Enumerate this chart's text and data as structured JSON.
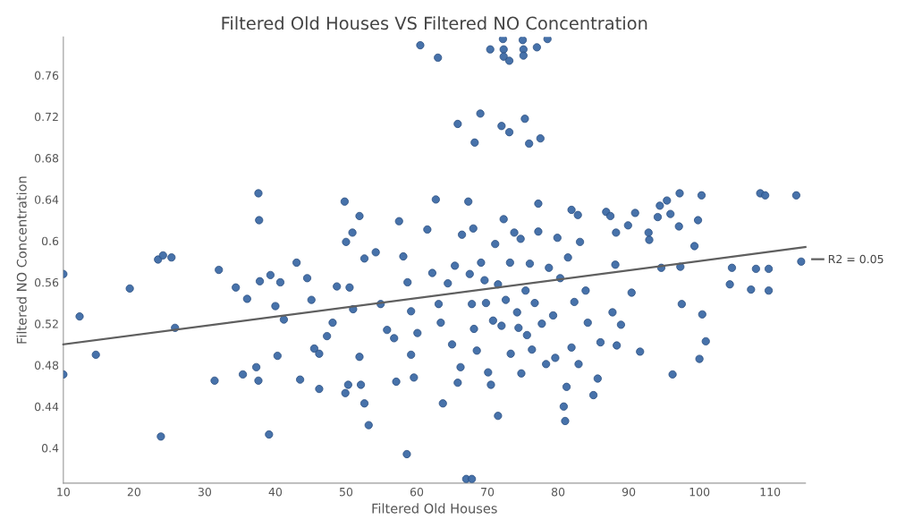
{
  "chart_data": {
    "type": "scatter",
    "title": "Filtered Old Houses VS Filtered NO Concentration",
    "xlabel": "Filtered Old Houses",
    "ylabel": "Filtered NO Concentration",
    "xlim": [
      10,
      115
    ],
    "ylim": [
      0.366,
      0.797
    ],
    "xticks": [
      10,
      20,
      30,
      40,
      50,
      60,
      70,
      80,
      90,
      100,
      110
    ],
    "yticks": [
      0.4,
      0.44,
      0.48,
      0.52,
      0.56,
      0.6,
      0.64,
      0.68,
      0.72,
      0.76
    ],
    "grid": false,
    "legend": "right",
    "series": [
      {
        "color": "#3d6aa5",
        "marker": "circle",
        "x": [
          60.5,
          63,
          70.4,
          72.2,
          72.3,
          72.3,
          73.1,
          75,
          75.1,
          75.1,
          77,
          78.5,
          65.8,
          69,
          68.2,
          72,
          73.1,
          75.3,
          75.9,
          77.5,
          58.6,
          67,
          67.8,
          23.8,
          39.1,
          53.2,
          81,
          71.5,
          10,
          10,
          12.3,
          14.6,
          19.4,
          23.4,
          24.1,
          25.3,
          25.8,
          31.4,
          32,
          37.6,
          37.7,
          36,
          37.3,
          37.6,
          35.4,
          34.4,
          39.3,
          37.8,
          40.7,
          40,
          40.3,
          41.2,
          43,
          43.5,
          44.5,
          45.1,
          45.5,
          46.2,
          46.2,
          47.3,
          48.1,
          48.7,
          49.8,
          50,
          50.9,
          50.5,
          49.9,
          50.3,
          51,
          51.9,
          51.9,
          52.1,
          52.6,
          52.6,
          54.2,
          54.9,
          55.8,
          56.8,
          57.1,
          57.5,
          58.1,
          58.7,
          59.2,
          59.2,
          60.1,
          59.6,
          61.5,
          62.7,
          62.2,
          63.1,
          63.4,
          63.7,
          64.4,
          65,
          65.4,
          65.8,
          66.2,
          66.4,
          67.3,
          67.5,
          67.8,
          68,
          68.1,
          68.5,
          69.1,
          69.6,
          69.8,
          70.1,
          70.5,
          70.8,
          71.1,
          71.5,
          72,
          72.3,
          72.6,
          73.2,
          73.3,
          73.8,
          74.2,
          74.4,
          74.7,
          74.8,
          75.4,
          75.6,
          76,
          76.3,
          76.7,
          77.2,
          77.2,
          77.7,
          78.3,
          78.7,
          79.3,
          79.6,
          79.9,
          80.3,
          80.8,
          81.2,
          81.4,
          81.9,
          81.9,
          82.3,
          82.8,
          82.9,
          83.1,
          83.9,
          84.2,
          85,
          85.6,
          86,
          86.8,
          87.4,
          87.7,
          88.1,
          88.2,
          88.3,
          88.9,
          89.9,
          90.4,
          90.9,
          91.6,
          92.8,
          92.9,
          94.1,
          94.4,
          94.6,
          95.4,
          95.9,
          96.2,
          97.1,
          97.2,
          97.3,
          97.5,
          99.3,
          99.8,
          100,
          100.3,
          100.4,
          100.9,
          104.3,
          104.6,
          107.3,
          108,
          108.6,
          109.3,
          109.8,
          109.8,
          113.7,
          114.4
        ],
        "values": [
          0.789,
          0.777,
          0.785,
          0.795,
          0.785,
          0.778,
          0.774,
          0.794,
          0.785,
          0.779,
          0.787,
          0.795,
          0.713,
          0.723,
          0.695,
          0.711,
          0.705,
          0.718,
          0.694,
          0.699,
          0.394,
          0.37,
          0.37,
          0.411,
          0.413,
          0.422,
          0.426,
          0.431,
          0.471,
          0.568,
          0.527,
          0.49,
          0.554,
          0.582,
          0.586,
          0.584,
          0.516,
          0.465,
          0.572,
          0.646,
          0.62,
          0.544,
          0.478,
          0.465,
          0.471,
          0.555,
          0.567,
          0.561,
          0.56,
          0.537,
          0.489,
          0.524,
          0.579,
          0.466,
          0.564,
          0.543,
          0.496,
          0.491,
          0.457,
          0.508,
          0.521,
          0.556,
          0.638,
          0.599,
          0.608,
          0.555,
          0.453,
          0.461,
          0.534,
          0.624,
          0.488,
          0.461,
          0.443,
          0.583,
          0.589,
          0.539,
          0.514,
          0.506,
          0.464,
          0.619,
          0.585,
          0.56,
          0.532,
          0.49,
          0.511,
          0.468,
          0.611,
          0.64,
          0.569,
          0.539,
          0.521,
          0.443,
          0.559,
          0.5,
          0.576,
          0.463,
          0.478,
          0.606,
          0.638,
          0.568,
          0.539,
          0.612,
          0.515,
          0.494,
          0.579,
          0.562,
          0.54,
          0.473,
          0.461,
          0.523,
          0.597,
          0.558,
          0.518,
          0.621,
          0.543,
          0.579,
          0.491,
          0.608,
          0.531,
          0.516,
          0.602,
          0.472,
          0.552,
          0.509,
          0.578,
          0.495,
          0.54,
          0.636,
          0.609,
          0.52,
          0.481,
          0.574,
          0.528,
          0.487,
          0.603,
          0.564,
          0.44,
          0.459,
          0.584,
          0.63,
          0.497,
          0.541,
          0.625,
          0.481,
          0.599,
          0.552,
          0.521,
          0.451,
          0.467,
          0.502,
          0.628,
          0.624,
          0.531,
          0.577,
          0.608,
          0.499,
          0.519,
          0.615,
          0.55,
          0.627,
          0.493,
          0.608,
          0.601,
          0.623,
          0.634,
          0.574,
          0.639,
          0.626,
          0.471,
          0.614,
          0.646,
          0.575,
          0.539,
          0.595,
          0.62,
          0.486,
          0.644,
          0.529,
          0.503,
          0.558,
          0.574,
          0.553,
          0.573,
          0.646,
          0.644,
          0.573,
          0.552,
          0.644,
          0.58
        ]
      },
      {
        "type": "line",
        "name": "R2 = 0.05",
        "color": "#5f5f5f",
        "x": [
          10,
          115
        ],
        "values": [
          0.5,
          0.594
        ]
      }
    ]
  }
}
